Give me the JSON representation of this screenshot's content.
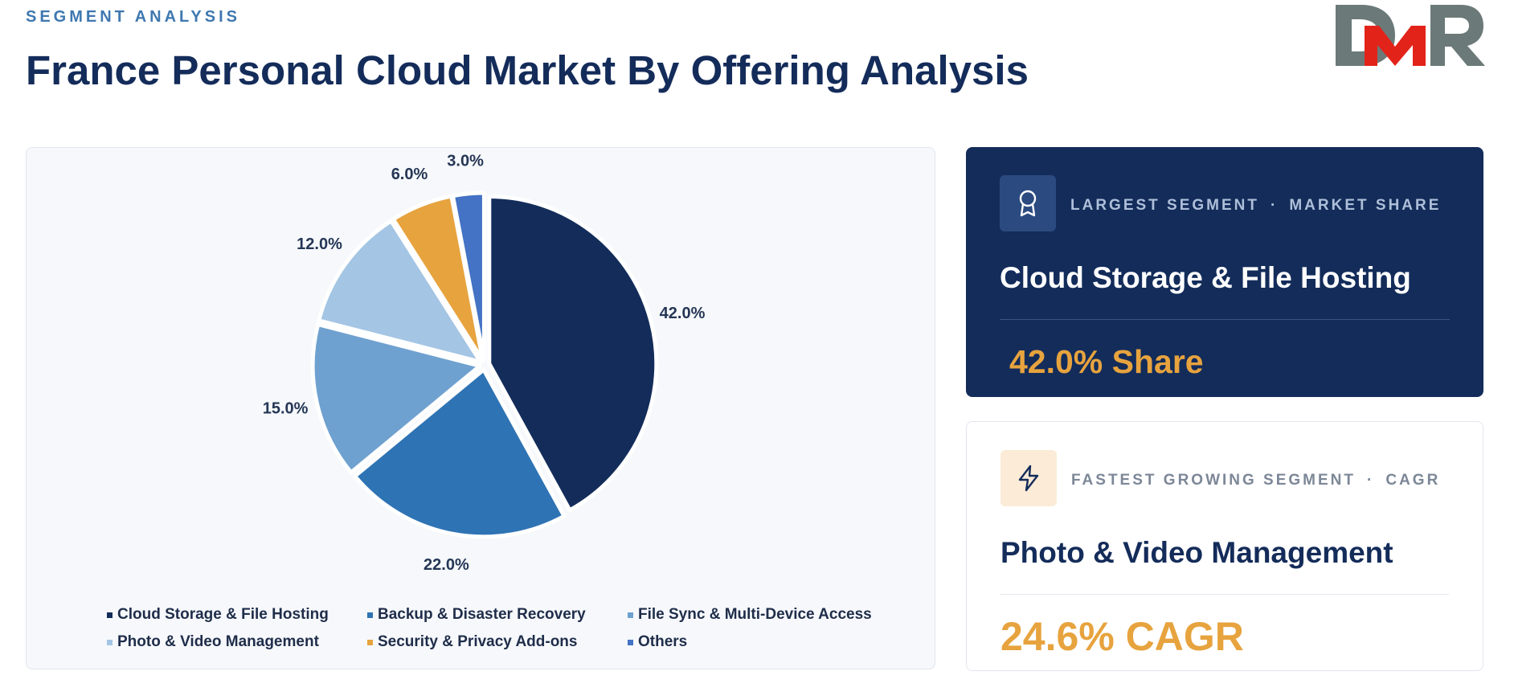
{
  "header": {
    "eyebrow": "SEGMENT ANALYSIS",
    "title": "France Personal Cloud Market By Offering Analysis",
    "logo_text": "DMR"
  },
  "chart_data": {
    "type": "pie",
    "categories": [
      "Cloud Storage & File Hosting",
      "Backup & Disaster Recovery",
      "File Sync & Multi-Device Access",
      "Photo & Video Management",
      "Security & Privacy Add-ons",
      "Others"
    ],
    "values": [
      42.0,
      22.0,
      15.0,
      12.0,
      6.0,
      3.0
    ],
    "labels": [
      "42.0%",
      "22.0%",
      "15.0%",
      "12.0%",
      "6.0%",
      "3.0%"
    ],
    "colors": [
      "#132c5a",
      "#2e73b4",
      "#6fa1d0",
      "#a4c5e4",
      "#e7a33e",
      "#4472c4"
    ],
    "legend_position": "bottom"
  },
  "largest_segment": {
    "tag": "LARGEST SEGMENT",
    "metric": "MARKET SHARE",
    "separator": "·",
    "name": "Cloud Storage & File Hosting",
    "figure": "42.0% Share",
    "icon": "award-ribbon-icon"
  },
  "fastest_segment": {
    "tag": "FASTEST GROWING SEGMENT",
    "metric": "CAGR",
    "separator": "·",
    "name": "Photo & Video Management",
    "figure": "24.6% CAGR",
    "icon": "lightning-icon"
  },
  "colors": {
    "navy": "#132c5a",
    "accent_orange": "#e7a33e",
    "eyebrow_blue": "#3f78b0",
    "logo_gray": "#6b7a78",
    "logo_red": "#e2231a"
  }
}
